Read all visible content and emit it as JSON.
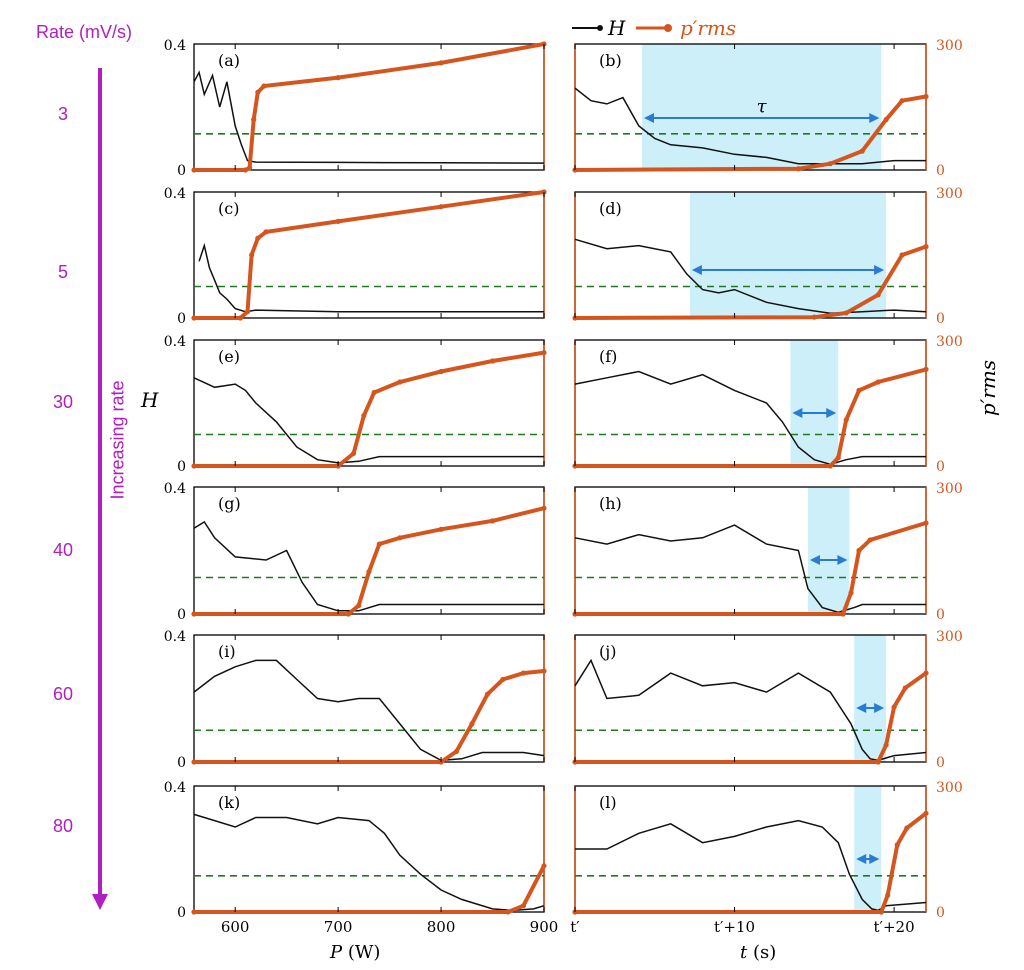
{
  "header": {
    "rate_label": "Rate (mV/s)",
    "increasing_label": "Increasing rate"
  },
  "rates": [
    "3",
    "5",
    "30",
    "40",
    "60",
    "80"
  ],
  "legend": {
    "h": "H",
    "p": "p′rms"
  },
  "axes": {
    "left_ylabel": "H",
    "right_ylabel": "p′rms",
    "left_xlabel_var": "P",
    "left_xlabel_unit": " (W)",
    "right_xlabel_var": "t",
    "right_xlabel_unit": " (s)",
    "left_xticks": [
      "600",
      "700",
      "800",
      "900"
    ],
    "right_xticks": [
      "t′",
      "t′+10",
      "t′+20"
    ],
    "h_ticks": [
      "0",
      "0.4"
    ],
    "p_ticks": [
      "0",
      "300"
    ]
  },
  "tau_label": "τ",
  "colors": {
    "h": "#111111",
    "p": "#d4561e",
    "threshold": "#1f7a1f",
    "shade": "#cdeffa",
    "arrow": "#2a7bd3",
    "accent": "#b01fbf"
  },
  "chart_data": [
    {
      "type": "line",
      "panel": "(a)",
      "x_unit": "W",
      "xlim": [
        560,
        900
      ],
      "h_ylim": [
        0,
        0.4
      ],
      "p_ylim": [
        0,
        300
      ],
      "threshold_h": 0.115,
      "h_points": [
        [
          560,
          0.28
        ],
        [
          565,
          0.31
        ],
        [
          570,
          0.24
        ],
        [
          578,
          0.3
        ],
        [
          585,
          0.2
        ],
        [
          592,
          0.28
        ],
        [
          600,
          0.14
        ],
        [
          606,
          0.08
        ],
        [
          612,
          0.03
        ],
        [
          620,
          0.025
        ],
        [
          700,
          0.024
        ],
        [
          800,
          0.023
        ],
        [
          900,
          0.022
        ]
      ],
      "p_points": [
        [
          560,
          0
        ],
        [
          610,
          0
        ],
        [
          614,
          5
        ],
        [
          618,
          120
        ],
        [
          622,
          185
        ],
        [
          628,
          200
        ],
        [
          700,
          220
        ],
        [
          800,
          255
        ],
        [
          900,
          300
        ]
      ]
    },
    {
      "type": "line",
      "panel": "(b)",
      "x_unit": "s",
      "xlim": [
        0,
        22
      ],
      "h_ylim": [
        0,
        0.4
      ],
      "p_ylim": [
        0,
        300
      ],
      "threshold_h": 0.115,
      "tau_span": [
        4.2,
        19.2
      ],
      "h_points": [
        [
          0,
          0.26
        ],
        [
          1,
          0.22
        ],
        [
          2,
          0.21
        ],
        [
          3,
          0.23
        ],
        [
          4,
          0.14
        ],
        [
          5,
          0.1
        ],
        [
          6,
          0.08
        ],
        [
          8,
          0.07
        ],
        [
          10,
          0.05
        ],
        [
          12,
          0.04
        ],
        [
          14,
          0.02
        ],
        [
          18,
          0.02
        ],
        [
          20,
          0.03
        ],
        [
          22,
          0.03
        ]
      ],
      "p_points": [
        [
          0,
          0
        ],
        [
          14,
          3
        ],
        [
          16,
          15
        ],
        [
          18,
          45
        ],
        [
          19.5,
          120
        ],
        [
          20.5,
          165
        ],
        [
          22,
          175
        ]
      ]
    },
    {
      "type": "line",
      "panel": "(c)",
      "x_unit": "W",
      "xlim": [
        560,
        900
      ],
      "h_ylim": [
        0,
        0.4
      ],
      "p_ylim": [
        0,
        300
      ],
      "threshold_h": 0.1,
      "h_points": [
        [
          565,
          0.18
        ],
        [
          570,
          0.23
        ],
        [
          575,
          0.16
        ],
        [
          580,
          0.12
        ],
        [
          585,
          0.08
        ],
        [
          592,
          0.06
        ],
        [
          600,
          0.03
        ],
        [
          610,
          0.02
        ],
        [
          620,
          0.025
        ],
        [
          700,
          0.02
        ],
        [
          800,
          0.02
        ],
        [
          900,
          0.02
        ]
      ],
      "p_points": [
        [
          560,
          0
        ],
        [
          605,
          0
        ],
        [
          612,
          15
        ],
        [
          616,
          150
        ],
        [
          622,
          190
        ],
        [
          630,
          205
        ],
        [
          700,
          230
        ],
        [
          800,
          265
        ],
        [
          900,
          300
        ]
      ]
    },
    {
      "type": "line",
      "panel": "(d)",
      "x_unit": "s",
      "xlim": [
        0,
        22
      ],
      "h_ylim": [
        0,
        0.4
      ],
      "p_ylim": [
        0,
        300
      ],
      "threshold_h": 0.1,
      "tau_span": [
        7.2,
        19.5
      ],
      "h_points": [
        [
          0,
          0.25
        ],
        [
          2,
          0.22
        ],
        [
          4,
          0.23
        ],
        [
          6,
          0.21
        ],
        [
          7,
          0.14
        ],
        [
          8,
          0.09
        ],
        [
          9,
          0.08
        ],
        [
          10,
          0.09
        ],
        [
          12,
          0.05
        ],
        [
          14,
          0.03
        ],
        [
          16,
          0.015
        ],
        [
          18,
          0.02
        ],
        [
          20,
          0.025
        ],
        [
          22,
          0.02
        ]
      ],
      "p_points": [
        [
          0,
          0
        ],
        [
          15,
          2
        ],
        [
          17,
          12
        ],
        [
          19,
          55
        ],
        [
          20.5,
          150
        ],
        [
          22,
          170
        ]
      ]
    },
    {
      "type": "line",
      "panel": "(e)",
      "x_unit": "W",
      "xlim": [
        560,
        900
      ],
      "h_ylim": [
        0,
        0.4
      ],
      "p_ylim": [
        0,
        300
      ],
      "threshold_h": 0.1,
      "h_points": [
        [
          560,
          0.28
        ],
        [
          580,
          0.25
        ],
        [
          600,
          0.26
        ],
        [
          610,
          0.24
        ],
        [
          620,
          0.2
        ],
        [
          640,
          0.14
        ],
        [
          660,
          0.06
        ],
        [
          680,
          0.02
        ],
        [
          700,
          0.01
        ],
        [
          720,
          0.015
        ],
        [
          740,
          0.03
        ],
        [
          800,
          0.03
        ],
        [
          900,
          0.03
        ]
      ],
      "p_points": [
        [
          560,
          0
        ],
        [
          700,
          0
        ],
        [
          715,
          30
        ],
        [
          725,
          120
        ],
        [
          735,
          175
        ],
        [
          760,
          200
        ],
        [
          800,
          225
        ],
        [
          850,
          250
        ],
        [
          900,
          270
        ]
      ]
    },
    {
      "type": "line",
      "panel": "(f)",
      "x_unit": "s",
      "xlim": [
        0,
        22
      ],
      "h_ylim": [
        0,
        0.4
      ],
      "p_ylim": [
        0,
        300
      ],
      "threshold_h": 0.1,
      "tau_span": [
        13.5,
        16.5
      ],
      "h_points": [
        [
          0,
          0.26
        ],
        [
          2,
          0.28
        ],
        [
          4,
          0.3
        ],
        [
          6,
          0.26
        ],
        [
          8,
          0.29
        ],
        [
          10,
          0.24
        ],
        [
          12,
          0.2
        ],
        [
          13,
          0.14
        ],
        [
          14,
          0.06
        ],
        [
          15,
          0.02
        ],
        [
          16,
          0.005
        ],
        [
          17,
          0.02
        ],
        [
          18,
          0.03
        ],
        [
          22,
          0.03
        ]
      ],
      "p_points": [
        [
          0,
          0
        ],
        [
          16,
          0
        ],
        [
          16.5,
          20
        ],
        [
          17,
          110
        ],
        [
          17.8,
          180
        ],
        [
          19,
          200
        ],
        [
          22,
          230
        ]
      ]
    },
    {
      "type": "line",
      "panel": "(g)",
      "x_unit": "W",
      "xlim": [
        560,
        900
      ],
      "h_ylim": [
        0,
        0.4
      ],
      "p_ylim": [
        0,
        300
      ],
      "threshold_h": 0.115,
      "h_points": [
        [
          560,
          0.27
        ],
        [
          570,
          0.29
        ],
        [
          580,
          0.24
        ],
        [
          600,
          0.18
        ],
        [
          630,
          0.17
        ],
        [
          650,
          0.2
        ],
        [
          665,
          0.1
        ],
        [
          680,
          0.03
        ],
        [
          700,
          0.01
        ],
        [
          720,
          0.01
        ],
        [
          740,
          0.03
        ],
        [
          900,
          0.03
        ]
      ],
      "p_points": [
        [
          560,
          0
        ],
        [
          710,
          0
        ],
        [
          720,
          20
        ],
        [
          730,
          100
        ],
        [
          740,
          165
        ],
        [
          760,
          180
        ],
        [
          800,
          200
        ],
        [
          850,
          220
        ],
        [
          900,
          250
        ]
      ]
    },
    {
      "type": "line",
      "panel": "(h)",
      "x_unit": "s",
      "xlim": [
        0,
        22
      ],
      "h_ylim": [
        0,
        0.4
      ],
      "p_ylim": [
        0,
        300
      ],
      "threshold_h": 0.115,
      "tau_span": [
        14.6,
        17.2
      ],
      "h_points": [
        [
          0,
          0.24
        ],
        [
          2,
          0.22
        ],
        [
          4,
          0.25
        ],
        [
          6,
          0.23
        ],
        [
          8,
          0.24
        ],
        [
          10,
          0.28
        ],
        [
          12,
          0.22
        ],
        [
          14,
          0.2
        ],
        [
          14.6,
          0.08
        ],
        [
          15.5,
          0.02
        ],
        [
          16.5,
          0.005
        ],
        [
          17.5,
          0.02
        ],
        [
          18,
          0.03
        ],
        [
          22,
          0.03
        ]
      ],
      "p_points": [
        [
          0,
          0
        ],
        [
          16.8,
          0
        ],
        [
          17.3,
          50
        ],
        [
          17.8,
          150
        ],
        [
          18.5,
          175
        ],
        [
          22,
          215
        ]
      ]
    },
    {
      "type": "line",
      "panel": "(i)",
      "x_unit": "W",
      "xlim": [
        560,
        900
      ],
      "h_ylim": [
        0,
        0.4
      ],
      "p_ylim": [
        0,
        300
      ],
      "threshold_h": 0.1,
      "h_points": [
        [
          560,
          0.22
        ],
        [
          580,
          0.27
        ],
        [
          600,
          0.3
        ],
        [
          620,
          0.32
        ],
        [
          640,
          0.32
        ],
        [
          660,
          0.26
        ],
        [
          680,
          0.2
        ],
        [
          700,
          0.19
        ],
        [
          720,
          0.2
        ],
        [
          740,
          0.2
        ],
        [
          760,
          0.12
        ],
        [
          780,
          0.04
        ],
        [
          800,
          0.005
        ],
        [
          820,
          0.01
        ],
        [
          840,
          0.03
        ],
        [
          880,
          0.03
        ],
        [
          900,
          0.02
        ]
      ],
      "p_points": [
        [
          560,
          0
        ],
        [
          800,
          0
        ],
        [
          815,
          25
        ],
        [
          830,
          90
        ],
        [
          845,
          160
        ],
        [
          860,
          195
        ],
        [
          880,
          210
        ],
        [
          900,
          215
        ]
      ]
    },
    {
      "type": "line",
      "panel": "(j)",
      "x_unit": "s",
      "xlim": [
        0,
        22
      ],
      "h_ylim": [
        0,
        0.4
      ],
      "p_ylim": [
        0,
        300
      ],
      "threshold_h": 0.1,
      "tau_span": [
        17.5,
        19.5
      ],
      "h_points": [
        [
          0,
          0.24
        ],
        [
          1,
          0.32
        ],
        [
          2,
          0.2
        ],
        [
          4,
          0.21
        ],
        [
          6,
          0.28
        ],
        [
          8,
          0.24
        ],
        [
          10,
          0.25
        ],
        [
          12,
          0.22
        ],
        [
          14,
          0.28
        ],
        [
          16,
          0.22
        ],
        [
          17.3,
          0.12
        ],
        [
          18,
          0.04
        ],
        [
          18.5,
          0.01
        ],
        [
          19,
          0.005
        ],
        [
          20,
          0.02
        ],
        [
          22,
          0.03
        ]
      ],
      "p_points": [
        [
          0,
          0
        ],
        [
          19,
          0
        ],
        [
          19.5,
          40
        ],
        [
          20,
          130
        ],
        [
          20.7,
          175
        ],
        [
          22,
          210
        ]
      ]
    },
    {
      "type": "line",
      "panel": "(k)",
      "x_unit": "W",
      "xlim": [
        560,
        900
      ],
      "h_ylim": [
        0,
        0.4
      ],
      "p_ylim": [
        0,
        300
      ],
      "threshold_h": 0.115,
      "h_points": [
        [
          560,
          0.31
        ],
        [
          580,
          0.29
        ],
        [
          600,
          0.27
        ],
        [
          620,
          0.3
        ],
        [
          650,
          0.3
        ],
        [
          680,
          0.28
        ],
        [
          700,
          0.3
        ],
        [
          730,
          0.29
        ],
        [
          745,
          0.25
        ],
        [
          760,
          0.18
        ],
        [
          780,
          0.12
        ],
        [
          800,
          0.07
        ],
        [
          820,
          0.04
        ],
        [
          850,
          0.01
        ],
        [
          870,
          0.005
        ],
        [
          890,
          0.01
        ],
        [
          900,
          0.02
        ]
      ],
      "p_points": [
        [
          560,
          0
        ],
        [
          865,
          0
        ],
        [
          880,
          15
        ],
        [
          900,
          110
        ]
      ]
    },
    {
      "type": "line",
      "panel": "(l)",
      "x_unit": "s",
      "xlim": [
        0,
        22
      ],
      "h_ylim": [
        0,
        0.4
      ],
      "p_ylim": [
        0,
        300
      ],
      "threshold_h": 0.115,
      "tau_span": [
        17.5,
        19.2
      ],
      "h_points": [
        [
          0,
          0.2
        ],
        [
          2,
          0.2
        ],
        [
          4,
          0.25
        ],
        [
          6,
          0.28
        ],
        [
          8,
          0.22
        ],
        [
          10,
          0.24
        ],
        [
          12,
          0.27
        ],
        [
          14,
          0.29
        ],
        [
          15.5,
          0.27
        ],
        [
          16.5,
          0.22
        ],
        [
          17.2,
          0.12
        ],
        [
          18,
          0.04
        ],
        [
          18.6,
          0.01
        ],
        [
          19,
          0.005
        ],
        [
          19.5,
          0.02
        ],
        [
          22,
          0.03
        ]
      ],
      "p_points": [
        [
          0,
          0
        ],
        [
          19.2,
          0
        ],
        [
          19.6,
          40
        ],
        [
          20.2,
          160
        ],
        [
          20.8,
          200
        ],
        [
          22,
          235
        ]
      ]
    }
  ]
}
